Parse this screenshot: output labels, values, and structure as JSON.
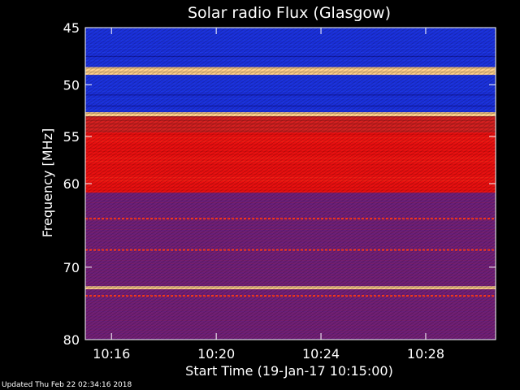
{
  "chart_data": {
    "type": "heatmap",
    "title": "Solar radio Flux (Glasgow)",
    "xlabel": "Start Time (19-Jan-17 10:15:00)",
    "ylabel": "Frequency [MHz]",
    "x_range_minutes": [
      10.25,
      10.5167
    ],
    "x_ticks": [
      {
        "label": "10:16",
        "minutes": 16
      },
      {
        "label": "10:20",
        "minutes": 20
      },
      {
        "label": "10:24",
        "minutes": 24
      },
      {
        "label": "10:28",
        "minutes": 28
      }
    ],
    "y_range": [
      45,
      80
    ],
    "y_ticks": [
      45,
      50,
      55,
      60,
      70,
      80
    ],
    "colors": {
      "background": "#000000",
      "blue_band": "#1a2fd8",
      "red_band": "#c41818",
      "bright_band": "#ffd08a",
      "purple_band": "#6a1f7a"
    },
    "bands": [
      {
        "from": 45,
        "to": 48.4,
        "level": "low"
      },
      {
        "from": 48.4,
        "to": 49.1,
        "level": "very-high"
      },
      {
        "from": 49.1,
        "to": 52.6,
        "level": "low"
      },
      {
        "from": 52.6,
        "to": 53.0,
        "level": "very-high"
      },
      {
        "from": 53.0,
        "to": 54.6,
        "level": "medium"
      },
      {
        "from": 54.6,
        "to": 61.0,
        "level": "high"
      },
      {
        "from": 61.0,
        "to": 72.5,
        "level": "medium-low"
      },
      {
        "from": 72.5,
        "to": 72.9,
        "level": "very-high"
      },
      {
        "from": 72.9,
        "to": 80,
        "level": "medium-low"
      }
    ]
  },
  "footer": {
    "updated": "Updated Thu Feb 22 02:34:16 2018"
  }
}
